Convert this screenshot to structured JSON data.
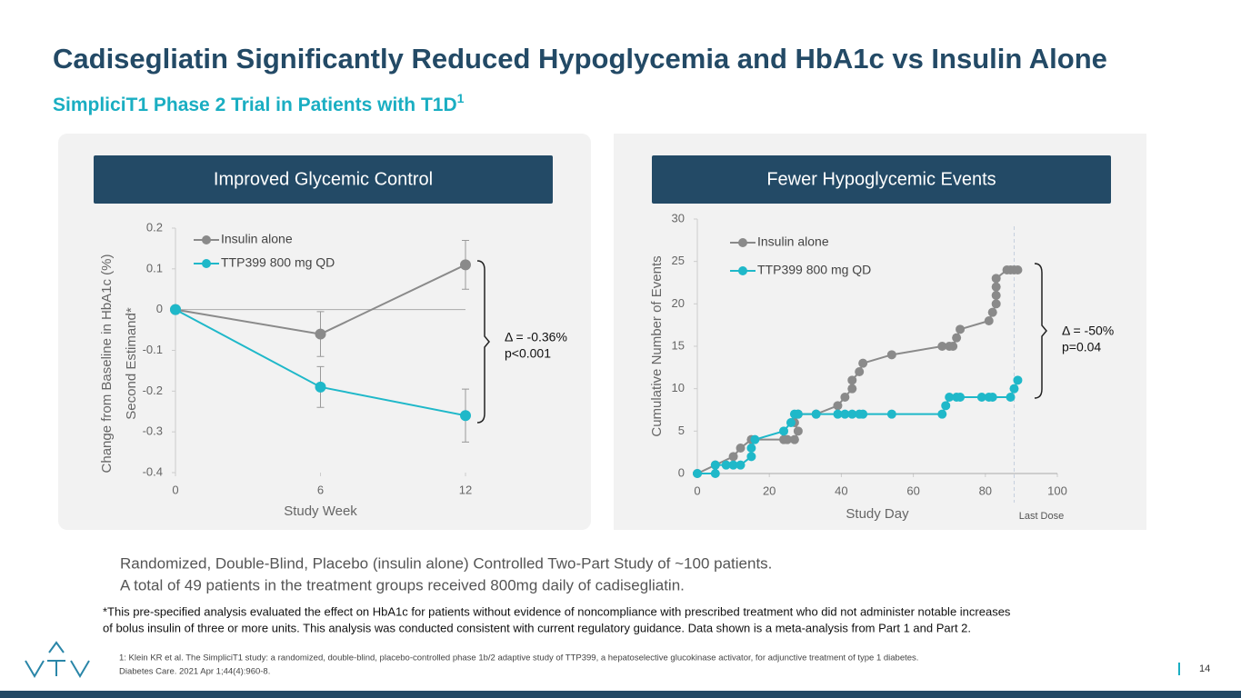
{
  "title": "Cadisegliatin Significantly Reduced Hypoglycemia and HbA1c vs Insulin Alone",
  "subtitle": "SimpliciT1 Phase 2 Trial in Patients with T1D",
  "subtitle_sup": "1",
  "chart_data": [
    {
      "type": "line",
      "header": "Improved Glycemic Control",
      "xlabel": "Study Week",
      "ylabel": [
        "Change from Baseline in HbA1c (%)",
        "Second Estimand*"
      ],
      "x": [
        0,
        6,
        12
      ],
      "xlim": [
        0,
        12
      ],
      "xticks": [
        0,
        6,
        12
      ],
      "ylim": [
        -0.4,
        0.2
      ],
      "yticks": [
        0.2,
        0.1,
        0,
        -0.1,
        -0.2,
        -0.3,
        -0.4
      ],
      "series": [
        {
          "name": "Insulin alone",
          "color": "#8a8a8a",
          "values": [
            0,
            -0.06,
            0.11
          ],
          "errors": [
            null,
            0.055,
            0.06
          ]
        },
        {
          "name": "TTP399 800 mg QD",
          "color": "#1fb8c9",
          "values": [
            0,
            -0.19,
            -0.26
          ],
          "errors": [
            null,
            0.05,
            0.065
          ]
        }
      ],
      "annotation": [
        "Δ = -0.36%",
        "p<0.001"
      ]
    },
    {
      "type": "line",
      "header": "Fewer Hypoglycemic Events",
      "xlabel": "Study Day",
      "ylabel": [
        "Cumulative Number of Events"
      ],
      "xlim": [
        0,
        100
      ],
      "xticks": [
        0,
        20,
        40,
        60,
        80,
        100
      ],
      "ylim": [
        0,
        30
      ],
      "yticks": [
        0,
        5,
        10,
        15,
        20,
        25,
        30
      ],
      "series": [
        {
          "name": "Insulin alone",
          "color": "#8a8a8a",
          "x": [
            0,
            5,
            10,
            12,
            15,
            24,
            25,
            27,
            28,
            27,
            28,
            33,
            39,
            41,
            43,
            43,
            45,
            46,
            54,
            68,
            70,
            71,
            72,
            73,
            81,
            82,
            83,
            83,
            83,
            83,
            86,
            87,
            88,
            89
          ],
          "values": [
            0,
            1,
            2,
            3,
            4,
            4,
            4,
            4,
            5,
            6,
            7,
            7,
            8,
            9,
            10,
            11,
            12,
            13,
            14,
            15,
            15,
            15,
            16,
            17,
            18,
            19,
            20,
            21,
            22,
            23,
            24,
            24,
            24,
            24
          ]
        },
        {
          "name": "TTP399 800 mg QD",
          "color": "#1fb8c9",
          "x": [
            0,
            5,
            5,
            8,
            10,
            12,
            15,
            15,
            16,
            24,
            26,
            27,
            28,
            33,
            39,
            41,
            43,
            45,
            46,
            54,
            68,
            69,
            70,
            72,
            73,
            79,
            81,
            82,
            87,
            88,
            89
          ],
          "values": [
            0,
            0,
            1,
            1,
            1,
            1,
            2,
            3,
            4,
            5,
            6,
            7,
            7,
            7,
            7,
            7,
            7,
            7,
            7,
            7,
            7,
            8,
            9,
            9,
            9,
            9,
            9,
            9,
            9,
            10,
            11
          ]
        }
      ],
      "reference_line": {
        "value": 88,
        "label": "Last Dose"
      },
      "annotation": [
        "Δ = -50%",
        "p=0.04"
      ]
    }
  ],
  "body": [
    "Randomized, Double-Blind, Placebo (insulin alone) Controlled Two-Part Study of ~100 patients.",
    "A total of 49 patients in the treatment groups received 800mg daily of cadisegliatin."
  ],
  "footnote": [
    "*This pre-specified analysis evaluated the effect on HbA1c for patients without evidence of noncompliance with prescribed treatment who did not administer notable increases",
    "of bolus insulin of three or more units. This analysis was conducted consistent with current regulatory guidance. Data shown is a meta-analysis from Part 1 and Part 2."
  ],
  "reference": [
    "1: Klein KR et al. The SimpliciT1 study: a randomized, double-blind, placebo-controlled phase 1b/2 adaptive study of TTP399, a hepatoselective glucokinase activator, for adjunctive treatment of type 1 diabetes.",
    "Diabetes Care. 2021 Apr 1;44(4):960-8."
  ],
  "page_number": "14"
}
